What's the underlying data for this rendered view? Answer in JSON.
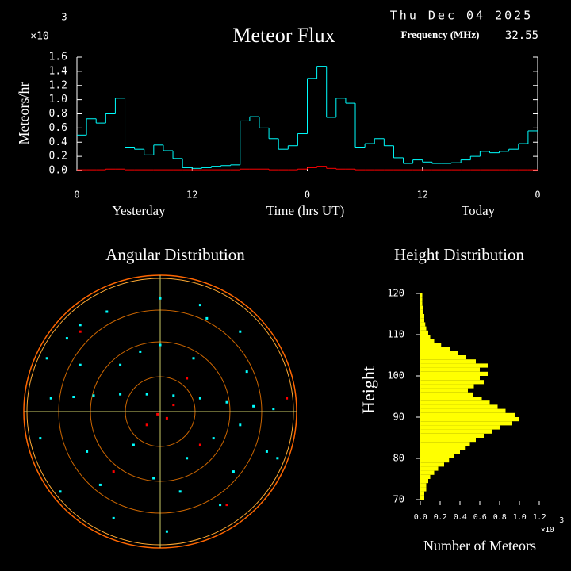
{
  "chart_data": [
    {
      "type": "line",
      "title": "Meteor Flux",
      "date": "Thu Dec 04 2025",
      "frequency_label": "Frequency (MHz)",
      "frequency": "32.55",
      "ylabel": "Meteors/hr",
      "multiplier": "×10",
      "multiplier_exponent": "3",
      "xlabel": "Time (hrs UT)",
      "xlabel_left": "Yesterday",
      "xlabel_right": "Today",
      "x": [
        0,
        1,
        2,
        3,
        4,
        5,
        6,
        7,
        8,
        9,
        10,
        11,
        12,
        13,
        14,
        15,
        16,
        17,
        18,
        19,
        20,
        21,
        22,
        23,
        24,
        25,
        26,
        27,
        28,
        29,
        30,
        31,
        32,
        33,
        34,
        35,
        36,
        37,
        38,
        39,
        40,
        41,
        42,
        43,
        44,
        45,
        46,
        47
      ],
      "xlim": [
        0,
        48
      ],
      "xticks": [
        0,
        12,
        {
          "value": 24,
          "label": "0"
        },
        {
          "value": 36,
          "label": "12"
        },
        {
          "value": 48,
          "label": "0"
        }
      ],
      "ylim": [
        0,
        1.6
      ],
      "yticks": [
        {
          "value": 0,
          "label": "0.0"
        },
        0.2,
        0.4,
        0.6,
        0.8,
        {
          "value": 1,
          "label": "1.0"
        },
        1.2,
        1.4,
        1.6
      ],
      "series": [
        {
          "color": "#00ffff",
          "values": [
            0.5,
            0.73,
            0.67,
            0.8,
            1.02,
            0.33,
            0.3,
            0.22,
            0.36,
            0.28,
            0.17,
            0.04,
            0.03,
            0.04,
            0.06,
            0.07,
            0.08,
            0.7,
            0.76,
            0.6,
            0.45,
            0.3,
            0.35,
            0.52,
            1.3,
            1.47,
            0.75,
            1.02,
            0.95,
            0.33,
            0.38,
            0.45,
            0.35,
            0.18,
            0.1,
            0.15,
            0.12,
            0.1,
            0.1,
            0.11,
            0.15,
            0.2,
            0.27,
            0.25,
            0.27,
            0.3,
            0.38,
            0.56
          ]
        },
        {
          "color": "#ff0000",
          "values": [
            0.01,
            0.01,
            0.01,
            0.02,
            0.02,
            0.01,
            0.01,
            0.01,
            0.01,
            0.01,
            0.01,
            0.01,
            0.01,
            0.01,
            0.01,
            0.01,
            0.01,
            0.02,
            0.02,
            0.02,
            0.01,
            0.01,
            0.01,
            0.02,
            0.04,
            0.06,
            0.03,
            0.02,
            0.02,
            0.01,
            0.01,
            0.01,
            0.01,
            0.01,
            0.01,
            0.01,
            0.01,
            0.01,
            0.01,
            0.01,
            0.01,
            0.01,
            0.01,
            0.01,
            0.01,
            0.01,
            0.01,
            0.01
          ]
        }
      ]
    },
    {
      "type": "scatter",
      "title": "Angular Distribution",
      "xlim": [
        -1,
        1
      ],
      "ylim": [
        -1,
        1
      ],
      "series": [
        {
          "color": "#00ffff",
          "x": [
            -0.82,
            -0.65,
            -0.5,
            -0.3,
            -0.1,
            0.1,
            0.3,
            0.5,
            0.7,
            0.85,
            -0.7,
            -0.4,
            0.0,
            0.35,
            0.6,
            -0.9,
            -0.55,
            -0.2,
            0.2,
            0.55,
            0.8,
            -0.75,
            -0.35,
            0.05,
            0.45,
            -0.6,
            -0.15,
            0.25,
            0.65,
            -0.45,
            0.15,
            -0.85,
            -0.6,
            -0.3,
            0.0,
            0.3,
            0.6,
            0.88,
            -0.05,
            0.4
          ],
          "y": [
            0.1,
            0.11,
            0.12,
            0.13,
            0.13,
            0.12,
            0.1,
            0.07,
            0.04,
            0.02,
            0.55,
            0.75,
            0.85,
            0.7,
            0.6,
            -0.2,
            -0.3,
            -0.25,
            -0.35,
            -0.45,
            -0.3,
            -0.6,
            -0.8,
            -0.9,
            -0.7,
            0.35,
            0.45,
            0.4,
            0.3,
            -0.55,
            -0.6,
            0.4,
            0.65,
            0.35,
            0.5,
            0.8,
            -0.1,
            -0.35,
            -0.5,
            -0.2
          ]
        },
        {
          "color": "#ff0000",
          "x": [
            0.1,
            -0.1,
            0.3,
            -0.35,
            0.2,
            0.05,
            -0.6,
            0.5,
            0.95,
            -0.02
          ],
          "y": [
            0.05,
            -0.1,
            -0.25,
            -0.45,
            0.25,
            -0.05,
            0.6,
            -0.7,
            0.1,
            -0.02
          ]
        }
      ]
    },
    {
      "type": "histogram",
      "title": "Height Distribution",
      "ylabel": "Height",
      "xlabel": "Number of Meteors",
      "multiplier": "×10",
      "multiplier_exponent": "3",
      "color": "#ffff00",
      "bins": [
        70,
        71,
        72,
        73,
        74,
        75,
        76,
        77,
        78,
        79,
        80,
        81,
        82,
        83,
        84,
        85,
        86,
        87,
        88,
        89,
        90,
        91,
        92,
        93,
        94,
        95,
        96,
        97,
        98,
        99,
        100,
        101,
        102,
        103,
        104,
        105,
        106,
        107,
        108,
        109,
        110,
        111,
        112,
        113,
        114,
        115,
        116,
        117,
        118,
        119,
        120
      ],
      "values": [
        0.04,
        0.04,
        0.06,
        0.06,
        0.08,
        0.1,
        0.14,
        0.18,
        0.24,
        0.29,
        0.34,
        0.4,
        0.45,
        0.5,
        0.56,
        0.64,
        0.72,
        0.8,
        0.92,
        1.0,
        0.96,
        0.86,
        0.78,
        0.7,
        0.62,
        0.53,
        0.48,
        0.54,
        0.64,
        0.6,
        0.68,
        0.6,
        0.68,
        0.56,
        0.46,
        0.38,
        0.3,
        0.21,
        0.14,
        0.1,
        0.08,
        0.06,
        0.05,
        0.04,
        0.04,
        0.03,
        0.03,
        0.02,
        0.02,
        0.02
      ],
      "xlim": [
        0,
        1.2
      ],
      "xticks": [
        {
          "value": 0,
          "label": "0.0"
        },
        0.2,
        0.4,
        0.6,
        0.8,
        {
          "value": 1,
          "label": "1.0"
        },
        1.2
      ],
      "ylim": [
        70,
        120
      ],
      "yticks": [
        70,
        80,
        90,
        100,
        110,
        120
      ]
    }
  ]
}
